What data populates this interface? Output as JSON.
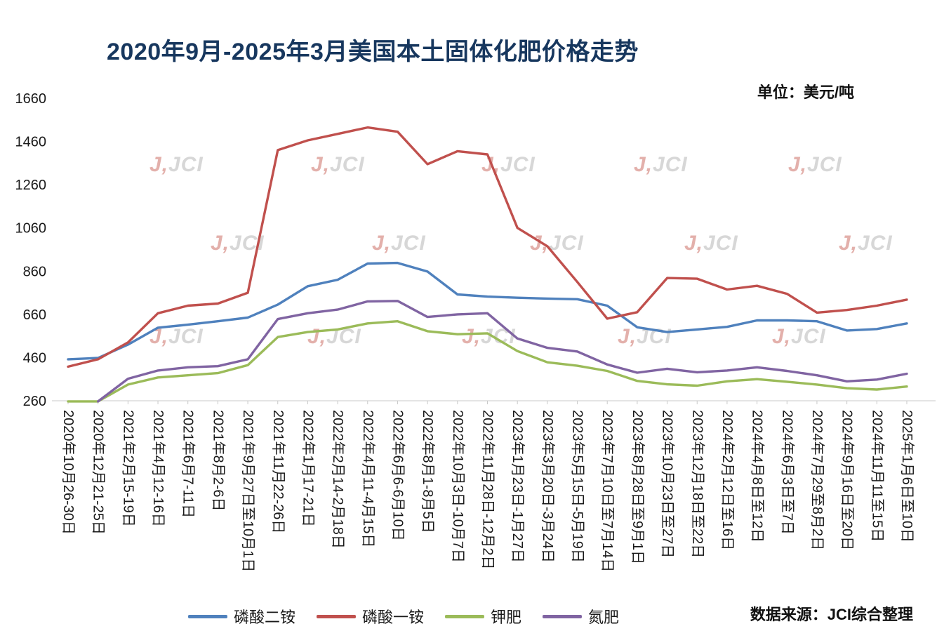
{
  "title": "2020年9月-2025年3月美国本土固体化肥价格走势",
  "unit_label": "单位：美元/吨",
  "source_label": "数据来源：JCI综合整理",
  "watermark": {
    "accent": "J,",
    "text": "JCI"
  },
  "colors": {
    "title": "#17375E",
    "axis_label": "#1a1a1a",
    "axis_line": "#c9c9c9"
  },
  "chart_data": {
    "type": "line",
    "title": "2020年9月-2025年3月美国本土固体化肥价格走势",
    "unit": "美元/吨",
    "ylim": [
      260,
      1660
    ],
    "y_ticks": [
      260,
      460,
      660,
      860,
      1060,
      1260,
      1460,
      1660
    ],
    "grid": false,
    "legend_position": "bottom",
    "categories": [
      "2020年10月26-30日",
      "2020年12月21-25日",
      "2021年2月15-19日",
      "2021年4月12-16日",
      "2021年6月7-11日",
      "2021年8月2-6日",
      "2021年9月27日至10月1日",
      "2021年11月22-26日",
      "2022年1月17-21日",
      "2022年2月14-2月18日",
      "2022年4月11-4月15日",
      "2022年6月6-6月10日",
      "2022年8月1-8月5日",
      "2022年10月3日-10月7日",
      "2022年11月28日-12月2日",
      "2023年1月23日-1月27日",
      "2023年3月20日-3月24日",
      "2023年5月15日-5月19日",
      "2023年7月10日至7月14日",
      "2023年8月28日至9月1日",
      "2023年10月23日至27日",
      "2023年12月18日至22日",
      "2024年2月12日至16日",
      "2024年4月8日至12日",
      "2024年6月3日至7日",
      "2024年7月29至8月2日",
      "2024年9月16日至20日",
      "2024年11月11至15日",
      "2025年1月6日至10日"
    ],
    "series": [
      {
        "name": "磷酸二铵",
        "color": "#4F81BD",
        "values": [
          452,
          458,
          520,
          598,
          612,
          628,
          645,
          705,
          790,
          820,
          895,
          898,
          858,
          752,
          742,
          737,
          733,
          730,
          700,
          600,
          578,
          590,
          602,
          632,
          632,
          628,
          585,
          592,
          618
        ]
      },
      {
        "name": "磷酸一铵",
        "color": "#C0504D",
        "values": [
          418,
          452,
          530,
          665,
          700,
          710,
          760,
          1420,
          1465,
          1495,
          1525,
          1505,
          1355,
          1415,
          1400,
          1060,
          975,
          810,
          640,
          670,
          828,
          825,
          775,
          792,
          755,
          668,
          680,
          700,
          728
        ]
      },
      {
        "name": "钾肥",
        "color": "#9BBB59",
        "values": [
          257,
          257,
          335,
          368,
          378,
          388,
          425,
          555,
          578,
          590,
          618,
          628,
          582,
          568,
          572,
          490,
          438,
          422,
          398,
          352,
          336,
          330,
          350,
          360,
          348,
          335,
          318,
          312,
          326
        ]
      },
      {
        "name": "氮肥",
        "color": "#8064A2",
        "values": [
          null,
          257,
          362,
          400,
          415,
          420,
          452,
          638,
          665,
          682,
          720,
          722,
          648,
          660,
          665,
          548,
          505,
          488,
          428,
          390,
          408,
          392,
          400,
          415,
          398,
          378,
          350,
          358,
          385
        ]
      }
    ]
  }
}
